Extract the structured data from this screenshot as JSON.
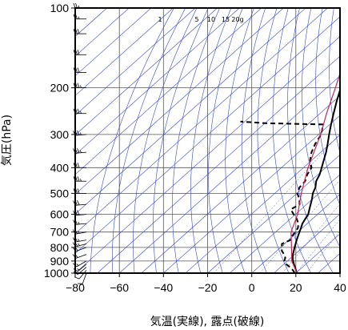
{
  "chart_data": {
    "type": "line",
    "chart_kind": "skew-T log-P diagram",
    "title": "",
    "xlabel": "気温(実線), 露点(破線)",
    "ylabel": "気圧(hPa)",
    "x_scale": "linear-skewed",
    "y_scale": "log",
    "xlim": [
      -80,
      40
    ],
    "ylim": [
      1000,
      100
    ],
    "x_ticks": [
      -80,
      -60,
      -40,
      -20,
      0,
      20,
      40
    ],
    "x_tick_labels": [
      "−80",
      "−60",
      "−40",
      "−20",
      "0",
      "20",
      "40"
    ],
    "y_ticks": [
      100,
      200,
      300,
      400,
      500,
      600,
      700,
      800,
      900,
      1000
    ],
    "y_tick_labels": [
      "100",
      "200",
      "300",
      "400",
      "500",
      "600",
      "700",
      "800",
      "900",
      "1000"
    ],
    "grid": true,
    "mixing_ratio_labels": [
      "1",
      "5",
      "10",
      "15",
      "20g"
    ],
    "colors": {
      "temperature": "#000000",
      "dewpoint": "#000000",
      "parcel": "#cc2255",
      "isotherm": "#3344dd",
      "dry_adiabat": "#3344dd",
      "mixing_ratio": "#3344dd",
      "grid": "#555555"
    },
    "series": [
      {
        "name": "",
        "role": "temperature",
        "style": "solid",
        "points": [
          {
            "p": 1000,
            "t": 20.5
          },
          {
            "p": 975,
            "t": 18.6
          },
          {
            "p": 950,
            "t": 16.6
          },
          {
            "p": 925,
            "t": 14.6
          },
          {
            "p": 900,
            "t": 12.6
          },
          {
            "p": 875,
            "t": 10.8
          },
          {
            "p": 850,
            "t": 9.2
          },
          {
            "p": 825,
            "t": 7.8
          },
          {
            "p": 800,
            "t": 6.4
          },
          {
            "p": 775,
            "t": 5.0
          },
          {
            "p": 750,
            "t": 3.6
          },
          {
            "p": 725,
            "t": 2.2
          },
          {
            "p": 700,
            "t": 0.8
          },
          {
            "p": 675,
            "t": -0.6
          },
          {
            "p": 650,
            "t": -2.2
          },
          {
            "p": 625,
            "t": -3.2
          },
          {
            "p": 600,
            "t": -4.2
          },
          {
            "p": 575,
            "t": -6.2
          },
          {
            "p": 550,
            "t": -8.2
          },
          {
            "p": 525,
            "t": -10.3
          },
          {
            "p": 500,
            "t": -12.8
          },
          {
            "p": 475,
            "t": -14.6
          },
          {
            "p": 450,
            "t": -17.4
          },
          {
            "p": 425,
            "t": -19.2
          },
          {
            "p": 400,
            "t": -21.8
          },
          {
            "p": 375,
            "t": -24.6
          },
          {
            "p": 350,
            "t": -27.6
          },
          {
            "p": 325,
            "t": -31.2
          },
          {
            "p": 300,
            "t": -35.2
          },
          {
            "p": 275,
            "t": -39.4
          },
          {
            "p": 250,
            "t": -43.8
          },
          {
            "p": 225,
            "t": -48.6
          },
          {
            "p": 200,
            "t": -53.6
          },
          {
            "p": 175,
            "t": -58.4
          },
          {
            "p": 150,
            "t": -62.8
          },
          {
            "p": 135,
            "t": -65.4
          },
          {
            "p": 125,
            "t": -66.2
          },
          {
            "p": 115,
            "t": -66.6
          },
          {
            "p": 110,
            "t": -68.0
          },
          {
            "p": 105,
            "t": -68.6
          },
          {
            "p": 100,
            "t": -69.2
          }
        ]
      },
      {
        "name": "",
        "role": "dewpoint",
        "style": "dashed",
        "points": [
          {
            "p": 1000,
            "t": 19.5
          },
          {
            "p": 975,
            "t": 17.2
          },
          {
            "p": 950,
            "t": 14.4
          },
          {
            "p": 925,
            "t": 11.0
          },
          {
            "p": 900,
            "t": 8.6
          },
          {
            "p": 875,
            "t": 7.4
          },
          {
            "p": 850,
            "t": 5.2
          },
          {
            "p": 825,
            "t": 2.4
          },
          {
            "p": 800,
            "t": 0.6
          },
          {
            "p": 775,
            "t": -1.2
          },
          {
            "p": 750,
            "t": 0.8
          },
          {
            "p": 725,
            "t": -0.6
          },
          {
            "p": 700,
            "t": -1.0
          },
          {
            "p": 675,
            "t": -2.0
          },
          {
            "p": 650,
            "t": -4.0
          },
          {
            "p": 625,
            "t": -7.0
          },
          {
            "p": 600,
            "t": -10.8
          },
          {
            "p": 575,
            "t": -14.6
          },
          {
            "p": 550,
            "t": -13.2
          },
          {
            "p": 525,
            "t": -16.0
          },
          {
            "p": 500,
            "t": -19.8
          },
          {
            "p": 475,
            "t": -21.8
          },
          {
            "p": 450,
            "t": -22.4
          },
          {
            "p": 425,
            "t": -24.8
          },
          {
            "p": 400,
            "t": -26.4
          },
          {
            "p": 375,
            "t": -30.8
          },
          {
            "p": 350,
            "t": -34.2
          },
          {
            "p": 325,
            "t": -36.8
          },
          {
            "p": 300,
            "t": -38.8
          },
          {
            "p": 275,
            "t": -43.0
          },
          {
            "p": 272,
            "t": -70.0
          },
          {
            "p": 268,
            "t": -82.0
          }
        ]
      },
      {
        "name": "",
        "role": "parcel",
        "style": "solid",
        "points": [
          {
            "p": 1000,
            "t": 20.5
          },
          {
            "p": 900,
            "t": 12.0
          },
          {
            "p": 800,
            "t": 5.0
          },
          {
            "p": 700,
            "t": -3.0
          },
          {
            "p": 600,
            "t": -9.0
          },
          {
            "p": 500,
            "t": -18.0
          },
          {
            "p": 400,
            "t": -28.0
          },
          {
            "p": 300,
            "t": -39.0
          },
          {
            "p": 250,
            "t": -47.0
          },
          {
            "p": 200,
            "t": -56.0
          },
          {
            "p": 150,
            "t": -68.0
          },
          {
            "p": 130,
            "t": -74.0
          }
        ]
      }
    ],
    "wind_barbs": [
      {
        "p": 1000,
        "dir": 200,
        "speed": 10
      },
      {
        "p": 975,
        "dir": 220,
        "speed": 10
      },
      {
        "p": 950,
        "dir": 230,
        "speed": 10
      },
      {
        "p": 925,
        "dir": 230,
        "speed": 15
      },
      {
        "p": 900,
        "dir": 240,
        "speed": 15
      },
      {
        "p": 850,
        "dir": 250,
        "speed": 20
      },
      {
        "p": 800,
        "dir": 250,
        "speed": 20
      },
      {
        "p": 775,
        "dir": 255,
        "speed": 25
      },
      {
        "p": 750,
        "dir": 260,
        "speed": 25
      },
      {
        "p": 700,
        "dir": 260,
        "speed": 25
      },
      {
        "p": 650,
        "dir": 265,
        "speed": 25
      },
      {
        "p": 600,
        "dir": 265,
        "speed": 30
      },
      {
        "p": 550,
        "dir": 265,
        "speed": 30
      },
      {
        "p": 500,
        "dir": 270,
        "speed": 30
      },
      {
        "p": 450,
        "dir": 270,
        "speed": 35
      },
      {
        "p": 400,
        "dir": 270,
        "speed": 30
      },
      {
        "p": 350,
        "dir": 265,
        "speed": 35
      },
      {
        "p": 300,
        "dir": 265,
        "speed": 35
      },
      {
        "p": 250,
        "dir": 270,
        "speed": 35
      },
      {
        "p": 200,
        "dir": 270,
        "speed": 35
      },
      {
        "p": 175,
        "dir": 270,
        "speed": 30
      },
      {
        "p": 150,
        "dir": 270,
        "speed": 30
      },
      {
        "p": 125,
        "dir": 270,
        "speed": 30
      },
      {
        "p": 110,
        "dir": 270,
        "speed": 25
      },
      {
        "p": 100,
        "dir": 270,
        "speed": 25
      }
    ]
  }
}
